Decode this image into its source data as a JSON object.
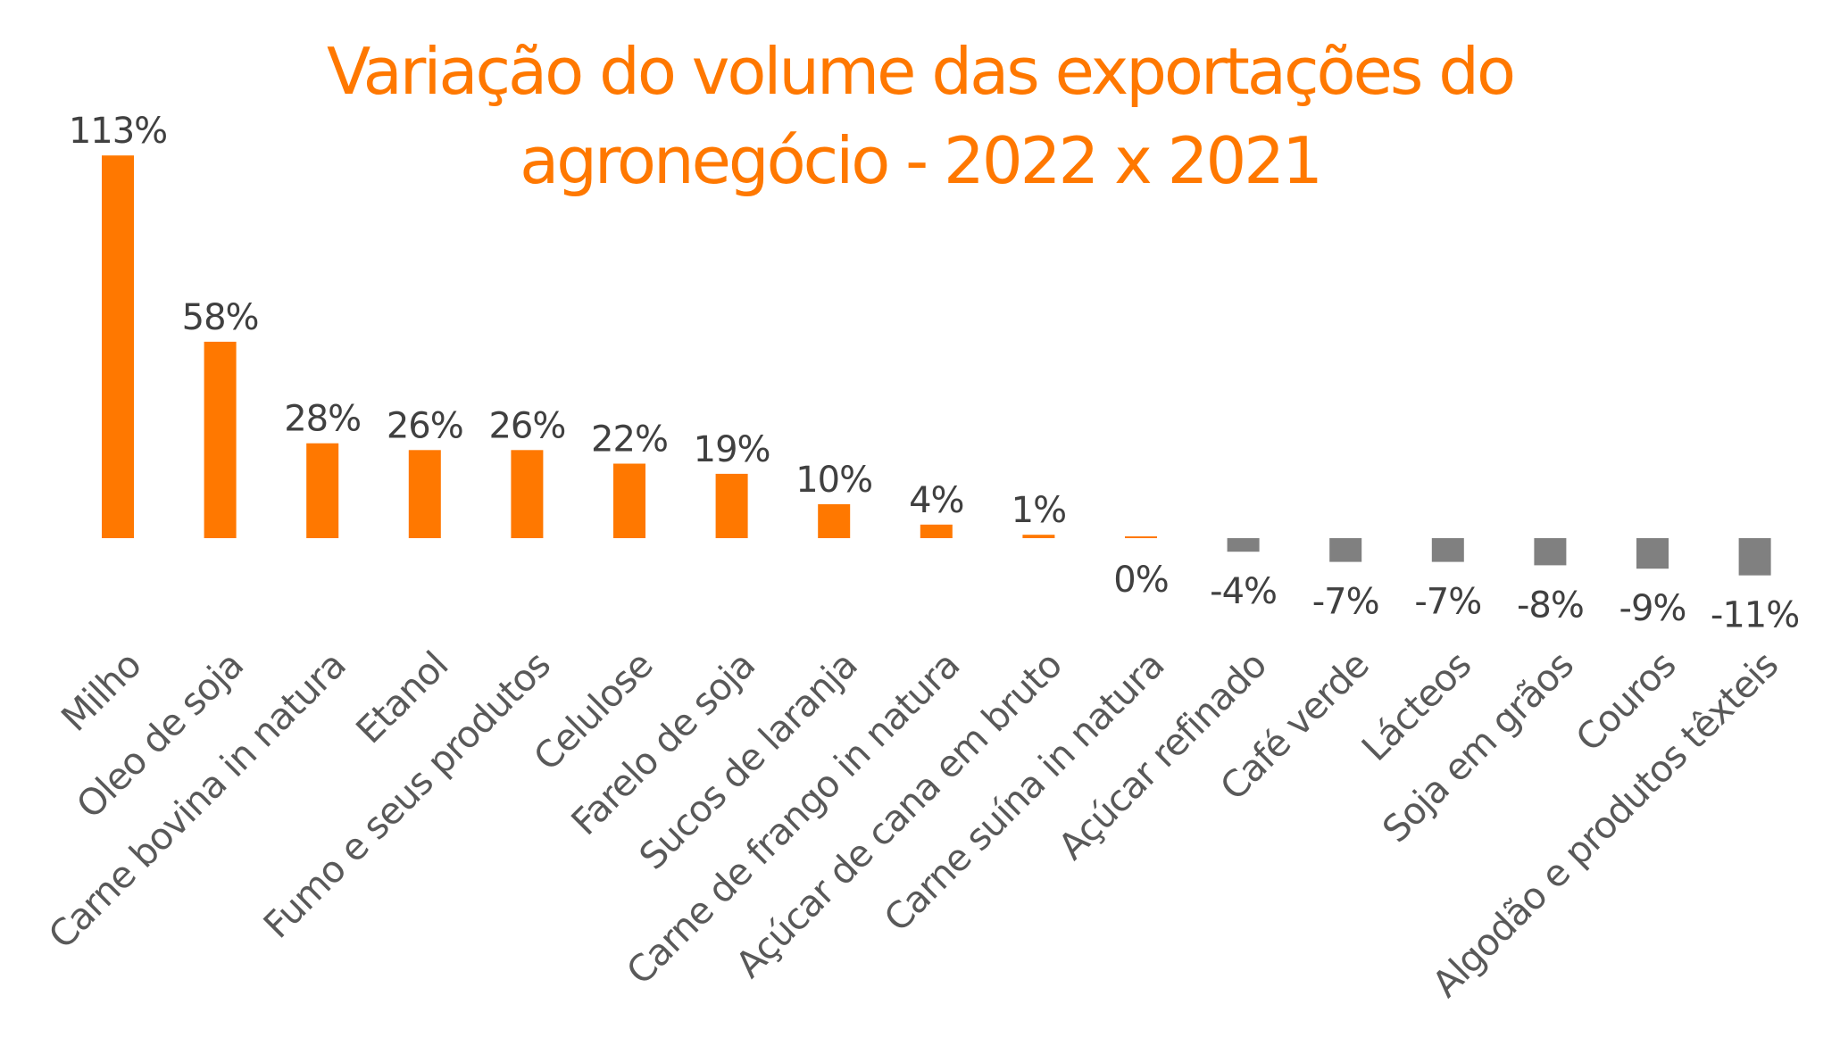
{
  "chart_data": {
    "type": "bar",
    "title_lines": [
      "Variação do volume das exportações do",
      "agronegócio - 2022 x 2021"
    ],
    "xlabel": "",
    "ylabel": "",
    "grid": false,
    "legend": "none",
    "ylim": [
      -11,
      113
    ],
    "value_suffix": "%",
    "categories": [
      "Milho",
      "Oleo de soja",
      "Carne bovina in natura",
      "Etanol",
      "Fumo e seus produtos",
      "Celulose",
      "Farelo de soja",
      "Sucos de laranja",
      "Carne de frango in natura",
      "Açúcar de cana em bruto",
      "Carne suína in natura",
      "Açúcar refinado",
      "Café verde",
      "Lácteos",
      "Soja em grãos",
      "Couros",
      "Algodão e produtos têxteis"
    ],
    "values": [
      113,
      58,
      28,
      26,
      26,
      22,
      19,
      10,
      4,
      1,
      0,
      -4,
      -7,
      -7,
      -8,
      -9,
      -11
    ],
    "data_labels": [
      "113%",
      "58%",
      "28%",
      "26%",
      "26%",
      "22%",
      "19%",
      "10%",
      "4%",
      "1%",
      "0%",
      "-4%",
      "-7%",
      "-7%",
      "-8%",
      "-9%",
      "-11%"
    ],
    "colors": {
      "positive": "#ff7800",
      "negative": "#808080",
      "title": "#ff7800",
      "label_text": "#404040",
      "category_text": "#595959"
    }
  }
}
